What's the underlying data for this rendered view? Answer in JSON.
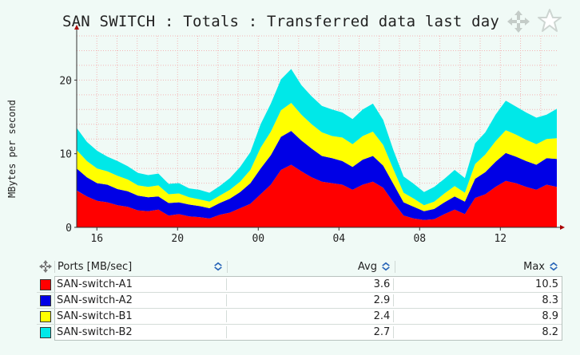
{
  "title": "SAN SWITCH : Totals : Transferred data last day",
  "icons": {
    "move": "move-arrows-icon",
    "favorite": "star-outline-icon",
    "sort": "sort-chevron-icon"
  },
  "colors": {
    "background": "#f0faf6",
    "grid": "#f2b5b5",
    "axis": "#333333"
  },
  "chart_data": {
    "type": "area",
    "stacked": true,
    "title": "SAN SWITCH : Totals : Transferred data last day",
    "xlabel": "",
    "ylabel": "MBytes per second",
    "ylim": [
      0,
      26
    ],
    "y_ticks": [
      0,
      10,
      20
    ],
    "x_ticks": [
      "16",
      "20",
      "00",
      "04",
      "08",
      "12"
    ],
    "x_tick_hours": [
      1,
      5,
      9,
      13,
      17,
      21
    ],
    "xlim_hours": [
      0,
      23.8
    ],
    "grid": true,
    "series": [
      {
        "name": "SAN-switch-A1",
        "color": "#ff0000",
        "values": [
          5.0,
          4.2,
          3.6,
          3.4,
          3.0,
          2.8,
          2.3,
          2.2,
          2.4,
          1.6,
          1.8,
          1.5,
          1.4,
          1.2,
          1.7,
          2.0,
          2.6,
          3.2,
          4.5,
          5.8,
          7.8,
          8.5,
          7.6,
          6.8,
          6.2,
          6.0,
          5.8,
          5.1,
          5.8,
          6.2,
          5.4,
          3.4,
          1.6,
          1.2,
          1.0,
          1.1,
          1.8,
          2.4,
          1.8,
          4.0,
          4.5,
          5.5,
          6.3,
          6.0,
          5.5,
          5.1,
          5.8,
          5.5
        ]
      },
      {
        "name": "SAN-switch-A2",
        "color": "#0000e6",
        "values": [
          3.0,
          2.6,
          2.4,
          2.4,
          2.2,
          2.1,
          2.0,
          1.9,
          1.8,
          1.7,
          1.6,
          1.6,
          1.5,
          1.4,
          1.6,
          1.9,
          2.2,
          2.8,
          3.5,
          4.0,
          4.5,
          4.6,
          4.2,
          3.9,
          3.5,
          3.4,
          3.2,
          3.1,
          3.4,
          3.5,
          3.0,
          2.5,
          1.8,
          1.6,
          1.2,
          1.4,
          1.6,
          1.8,
          1.7,
          2.6,
          3.0,
          3.4,
          3.8,
          3.6,
          3.5,
          3.4,
          3.6,
          3.8
        ]
      },
      {
        "name": "SAN-switch-B1",
        "color": "#ffff00",
        "values": [
          2.5,
          2.2,
          2.0,
          1.8,
          1.8,
          1.6,
          1.4,
          1.4,
          1.5,
          1.2,
          1.2,
          1.0,
          0.9,
          0.9,
          1.0,
          1.2,
          1.4,
          1.8,
          2.8,
          3.2,
          3.6,
          3.8,
          3.5,
          3.3,
          3.2,
          3.0,
          3.2,
          3.1,
          3.2,
          3.3,
          2.8,
          2.0,
          1.3,
          1.1,
          0.8,
          1.0,
          1.2,
          1.4,
          1.2,
          2.0,
          2.4,
          2.8,
          3.1,
          3.0,
          2.9,
          2.8,
          2.6,
          2.8
        ]
      },
      {
        "name": "SAN-switch-B2",
        "color": "#00e8e8",
        "values": [
          3.0,
          2.6,
          2.4,
          2.0,
          2.0,
          1.8,
          1.7,
          1.6,
          1.6,
          1.4,
          1.4,
          1.2,
          1.3,
          1.2,
          1.3,
          1.6,
          2.0,
          2.4,
          3.2,
          3.8,
          4.2,
          4.6,
          4.0,
          3.8,
          3.6,
          3.6,
          3.4,
          3.4,
          3.6,
          3.8,
          3.4,
          2.6,
          2.2,
          2.0,
          1.8,
          2.0,
          2.0,
          2.2,
          2.0,
          2.8,
          3.0,
          3.6,
          4.0,
          3.8,
          3.7,
          3.6,
          3.3,
          4.0
        ]
      }
    ]
  },
  "legend": {
    "col_ports": "Ports [MB/sec]",
    "col_avg": "Avg",
    "col_max": "Max",
    "rows": [
      {
        "name": "SAN-switch-A1",
        "color": "#ff0000",
        "avg": "3.6",
        "max": "10.5"
      },
      {
        "name": "SAN-switch-A2",
        "color": "#0000e6",
        "avg": "2.9",
        "max": "8.3"
      },
      {
        "name": "SAN-switch-B1",
        "color": "#ffff00",
        "avg": "2.4",
        "max": "8.9"
      },
      {
        "name": "SAN-switch-B2",
        "color": "#00e8e8",
        "avg": "2.7",
        "max": "8.2"
      }
    ]
  }
}
